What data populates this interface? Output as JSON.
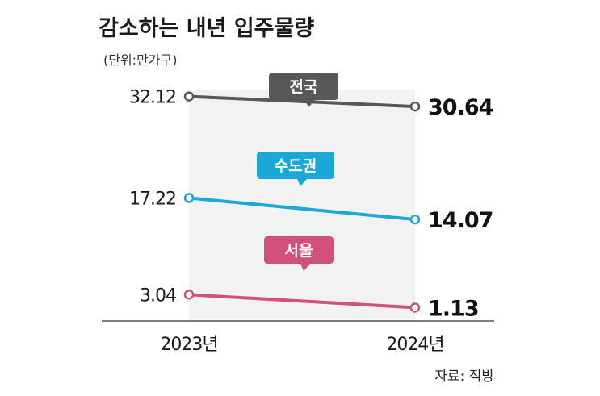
{
  "chart_data": {
    "type": "line",
    "title": "감소하는 내년 입주물량",
    "subtitle": "(단위:만가구)",
    "categories": [
      "2023년",
      "2024년"
    ],
    "series": [
      {
        "name": "전국",
        "values": [
          32.12,
          30.64
        ],
        "labels": [
          "32.12",
          "30.64"
        ],
        "color": "#585858"
      },
      {
        "name": "수도권",
        "values": [
          17.22,
          14.07
        ],
        "labels": [
          "17.22",
          "14.07"
        ],
        "color": "#1aa8d6"
      },
      {
        "name": "서울",
        "values": [
          3.04,
          1.13
        ],
        "labels": [
          "3.04",
          "1.13"
        ],
        "color": "#d2507c"
      }
    ],
    "xlabel": "",
    "ylabel": "",
    "legend": "tags-on-lines",
    "grid": false,
    "source": "자료: 직방"
  }
}
